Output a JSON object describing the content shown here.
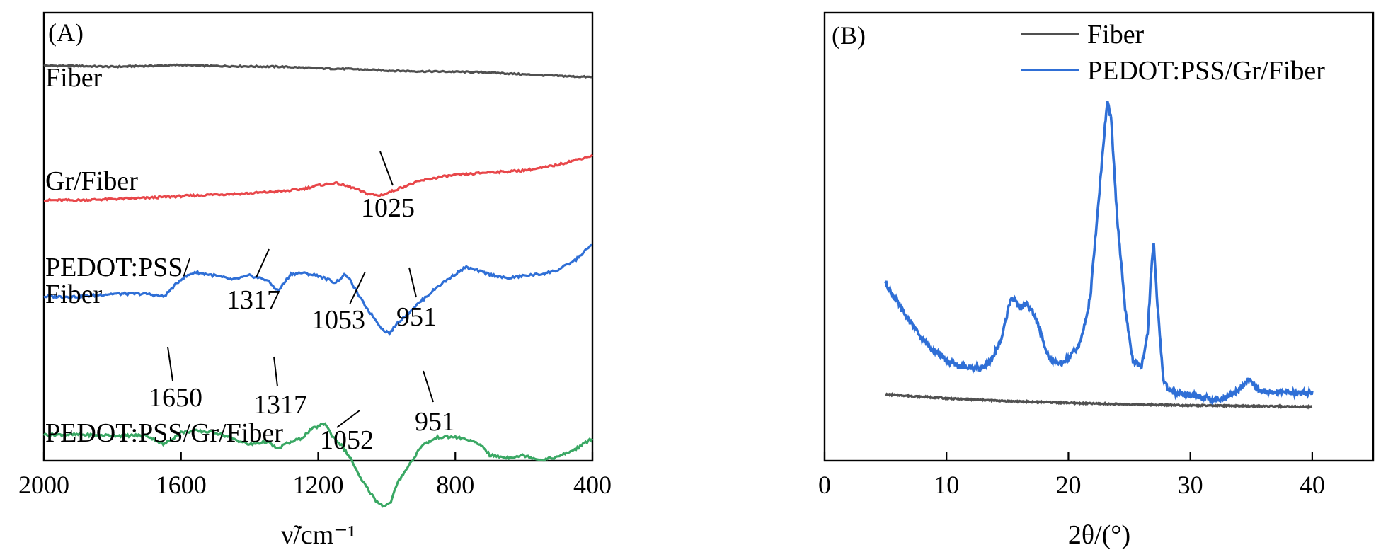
{
  "chart_data": [
    {
      "panel": "(A)",
      "type": "line",
      "xlabel": "ν̃/cm⁻¹",
      "xlim": [
        2000,
        400
      ],
      "xticks": [
        "2000",
        "1600",
        "1200",
        "800",
        "400"
      ],
      "y_ticks_shown": false,
      "series": [
        {
          "name": "Fiber",
          "color": "#505050",
          "offset": 0,
          "x": [
            2000,
            1900,
            1800,
            1700,
            1650,
            1600,
            1550,
            1500,
            1400,
            1300,
            1200,
            1100,
            1000,
            900,
            800,
            700,
            600,
            500,
            400
          ],
          "y": [
            0.95,
            0.94,
            0.92,
            0.94,
            0.95,
            0.97,
            0.95,
            0.94,
            0.93,
            0.92,
            0.88,
            0.86,
            0.82,
            0.8,
            0.79,
            0.77,
            0.72,
            0.68,
            0.65
          ]
        },
        {
          "name": "Gr/Fiber",
          "color": "#e8474a",
          "offset": 0,
          "x": [
            2000,
            1900,
            1800,
            1700,
            1600,
            1500,
            1400,
            1300,
            1250,
            1200,
            1150,
            1100,
            1060,
            1025,
            1000,
            950,
            900,
            850,
            800,
            750,
            700,
            650,
            600,
            550,
            500,
            450,
            400
          ],
          "y": [
            0.1,
            0.1,
            0.12,
            0.14,
            0.17,
            0.2,
            0.22,
            0.26,
            0.29,
            0.36,
            0.4,
            0.32,
            0.22,
            0.18,
            0.22,
            0.34,
            0.44,
            0.5,
            0.54,
            0.56,
            0.59,
            0.6,
            0.62,
            0.66,
            0.72,
            0.8,
            0.88
          ]
        },
        {
          "name": "PEDOT:PSS/ Fiber",
          "color": "#2f6fd6",
          "offset": 0,
          "x": [
            2000,
            1900,
            1800,
            1700,
            1650,
            1600,
            1560,
            1500,
            1450,
            1400,
            1350,
            1317,
            1280,
            1250,
            1200,
            1150,
            1120,
            1100,
            1080,
            1053,
            1030,
            1010,
            990,
            970,
            951,
            920,
            880,
            850,
            800,
            770,
            700,
            650,
            600,
            550,
            500,
            450,
            400
          ],
          "y": [
            0.1,
            0.1,
            0.14,
            0.14,
            0.1,
            0.35,
            0.45,
            0.4,
            0.34,
            0.4,
            0.34,
            0.18,
            0.42,
            0.44,
            0.4,
            0.3,
            0.42,
            0.28,
            0.1,
            -0.1,
            -0.25,
            -0.38,
            -0.42,
            -0.28,
            -0.2,
            -0.05,
            0.12,
            0.25,
            0.42,
            0.52,
            0.42,
            0.36,
            0.4,
            0.42,
            0.48,
            0.62,
            0.85
          ]
        },
        {
          "name": "PEDOT:PSS/Gr/Fiber",
          "color": "#3aa864",
          "offset": 0,
          "x": [
            2000,
            1900,
            1800,
            1700,
            1650,
            1600,
            1560,
            1500,
            1450,
            1400,
            1350,
            1317,
            1300,
            1250,
            1220,
            1180,
            1160,
            1130,
            1100,
            1080,
            1052,
            1030,
            1010,
            990,
            970,
            951,
            920,
            900,
            850,
            800,
            760,
            720,
            700,
            650,
            600,
            550,
            500,
            450,
            400
          ],
          "y": [
            0.85,
            0.85,
            0.84,
            0.84,
            0.72,
            0.88,
            0.9,
            0.88,
            0.8,
            0.72,
            0.76,
            0.66,
            0.72,
            0.8,
            0.92,
            1.0,
            0.84,
            0.7,
            0.5,
            0.3,
            0.12,
            -0.02,
            -0.08,
            -0.05,
            0.2,
            0.35,
            0.55,
            0.7,
            0.82,
            0.82,
            0.78,
            0.7,
            0.58,
            0.55,
            0.58,
            0.52,
            0.56,
            0.66,
            0.8
          ]
        }
      ],
      "series_labels": [
        "Fiber",
        "Gr/Fiber",
        "PEDOT:PSS/",
        "Fiber",
        "PEDOT:PSS/Gr/Fiber"
      ],
      "annotations": [
        "1025",
        "1317",
        "1053",
        "951",
        "1650",
        "1317",
        "1052",
        "951"
      ]
    },
    {
      "panel": "(B)",
      "type": "line",
      "xlabel": "2θ/(°)",
      "xlim": [
        0,
        45
      ],
      "ylim": [
        0,
        100
      ],
      "xticks": [
        "0",
        "10",
        "20",
        "30",
        "40"
      ],
      "y_ticks_shown": false,
      "legend_position": "top-right",
      "series": [
        {
          "name": "Fiber",
          "color": "#505050",
          "x": [
            5,
            10,
            15,
            20,
            25,
            30,
            35,
            40
          ],
          "y": [
            12.5,
            11.4,
            10.6,
            10.1,
            9.7,
            9.4,
            9.2,
            9.0
          ]
        },
        {
          "name": "PEDOT:PSS/Gr/Fiber",
          "color": "#2f6fd6",
          "x": [
            5,
            6,
            7,
            8,
            9,
            10,
            11,
            12,
            12.8,
            13.5,
            14.5,
            15.3,
            16,
            16.6,
            17.2,
            18,
            18.5,
            19.2,
            20,
            21,
            21.8,
            22.5,
            23,
            23.2,
            23.5,
            24,
            24.7,
            25.3,
            26,
            26.5,
            26.8,
            27,
            27.3,
            27.8,
            28.5,
            30,
            32,
            33,
            34,
            34.8,
            35.5,
            36.5,
            38,
            40
          ],
          "y": [
            44,
            38,
            33,
            28,
            25,
            22,
            20.5,
            20,
            20,
            21,
            28,
            40,
            37,
            38,
            35,
            27,
            22,
            21,
            22.5,
            27,
            40,
            68,
            88,
            95,
            90,
            62,
            35,
            22,
            20,
            30,
            48,
            55,
            38,
            16,
            13,
            12.5,
            11,
            11.5,
            14,
            17,
            14,
            13,
            13,
            13
          ]
        }
      ]
    }
  ]
}
